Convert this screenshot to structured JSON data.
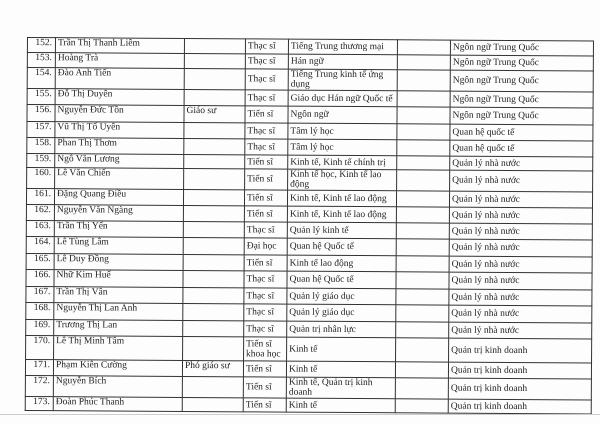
{
  "rows": [
    {
      "no": "152.",
      "name": "Trần Thị Thanh Liêm",
      "title": "",
      "degree": "Thạc sĩ",
      "major": "Tiếng Trung thương mại",
      "field": "Ngôn ngữ Trung Quốc"
    },
    {
      "no": "153.",
      "name": "Hoàng Trà",
      "title": "",
      "degree": "Thạc sĩ",
      "major": "Hán ngữ",
      "field": "Ngôn ngữ Trung Quốc"
    },
    {
      "no": "154.",
      "name": "Đào Anh Tiến",
      "title": "",
      "degree": "Thạc sĩ",
      "major": "Tiếng Trung kinh tế ứng dụng",
      "field": "Ngôn ngữ Trung Quốc"
    },
    {
      "no": "155.",
      "name": "Đỗ Thị Duyên",
      "title": "",
      "degree": "Thạc sĩ",
      "major": "Giáo dục Hán ngữ Quốc tế",
      "field": "Ngôn ngữ Trung Quốc"
    },
    {
      "no": "156.",
      "name": "Nguyễn Đức Tồn",
      "title": "Giáo sư",
      "degree": "Tiến sĩ",
      "major": "Ngôn ngữ",
      "field": "Ngôn ngữ Trung Quốc"
    },
    {
      "no": "157.",
      "name": "Vũ Thị Tố Uyên",
      "title": "",
      "degree": "Thạc sĩ",
      "major": "Tâm lý học",
      "field": "Quan hệ quốc tế"
    },
    {
      "no": "158.",
      "name": "Phan Thị Thơm",
      "title": "",
      "degree": "Thạc sĩ",
      "major": "Tâm lý học",
      "field": "Quan hệ quốc tế"
    },
    {
      "no": "159.",
      "name": "Ngô Văn Lương",
      "title": "",
      "degree": "Tiến sĩ",
      "major": "Kinh tế, Kinh tế chính trị",
      "field": "Quản lý nhà nước"
    },
    {
      "no": "160.",
      "name": "Lê Văn Chiến",
      "title": "",
      "degree": "Tiến sĩ",
      "major": "Kinh tế học, Kinh tế lao động",
      "field": "Quản lý nhà nước"
    },
    {
      "no": "161.",
      "name": "Đặng Quang Điều",
      "title": "",
      "degree": "Tiến sĩ",
      "major": "Kinh tế, Kinh tế lao động",
      "field": "Quản lý nhà nước"
    },
    {
      "no": "162.",
      "name": "Nguyễn Văn Ngàng",
      "title": "",
      "degree": "Tiến sĩ",
      "major": "Kinh tế, Kinh tế lao động",
      "field": "Quản lý nhà nước"
    },
    {
      "no": "163.",
      "name": "Trần Thị Yến",
      "title": "",
      "degree": "Thạc sĩ",
      "major": "Quản lý kinh tế",
      "field": "Quản lý nhà nước"
    },
    {
      "no": "164.",
      "name": "Lê Tùng Lâm",
      "title": "",
      "degree": "Đại học",
      "major": "Quan hệ Quốc tế",
      "field": "Quản lý nhà nước"
    },
    {
      "no": "165.",
      "name": "Lê Duy Đồng",
      "title": "",
      "degree": "Tiến sĩ",
      "major": "Kinh tế lao động",
      "field": "Quản lý nhà nước"
    },
    {
      "no": "166.",
      "name": "Nhữ Kim Huế",
      "title": "",
      "degree": "Thạc sĩ",
      "major": "Quan hệ Quốc tế",
      "field": "Quản lý nhà nước"
    },
    {
      "no": "167.",
      "name": "Trần Thị Vân",
      "title": "",
      "degree": "Thạc sĩ",
      "major": "Quản lý giáo dục",
      "field": "Quản lý nhà nước"
    },
    {
      "no": "168.",
      "name": "Nguyễn Thị Lan Anh",
      "title": "",
      "degree": "Thạc sĩ",
      "major": "Quản lý giáo dục",
      "field": "Quản lý nhà nước"
    },
    {
      "no": "169.",
      "name": "Trương Thị Lan",
      "title": "",
      "degree": "Thạc sĩ",
      "major": "Quản trị nhân lực",
      "field": "Quản lý nhà nước"
    },
    {
      "no": "170.",
      "name": "Lê Thị Minh Tâm",
      "title": "",
      "degree": "Tiến sĩ khoa học",
      "major": "Kinh tế",
      "field": "Quản trị kinh doanh"
    },
    {
      "no": "171.",
      "name": "Phạm Kiên Cường",
      "title": "Phó giáo sư",
      "degree": "Tiến sĩ",
      "major": "Kinh tế",
      "field": "Quản trị kinh doanh"
    },
    {
      "no": "172.",
      "name": "Nguyễn Bích",
      "title": "",
      "degree": "Tiến sĩ",
      "major": "Kinh tế, Quản trị kinh doanh",
      "field": "Quản trị kinh doanh"
    },
    {
      "no": "173.",
      "name": "Đoàn Phúc Thanh",
      "title": "",
      "degree": "Tiến sĩ",
      "major": "Kinh tế",
      "field": "Quản trị kinh doanh"
    }
  ]
}
